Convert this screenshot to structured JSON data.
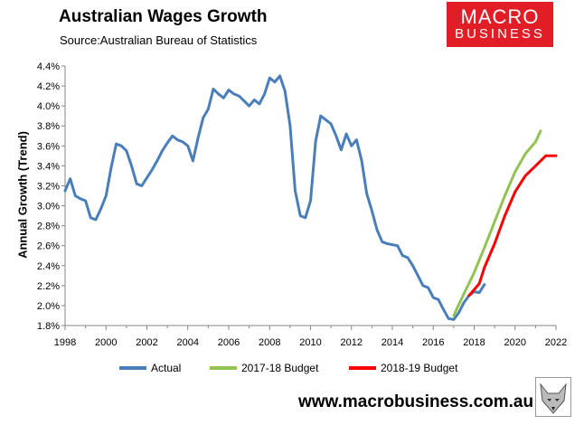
{
  "header": {
    "title": "Australian Wages Growth",
    "source": "Source:Australian Bureau of Statistics",
    "logo_line1": "MACRO",
    "logo_line2": "BUSINESS"
  },
  "footer": {
    "url": "www.macrobusiness.com.au"
  },
  "chart_data": {
    "type": "line",
    "ylabel": "Annual Growth (Trend)",
    "xlim": [
      1998,
      2022
    ],
    "ylim": [
      1.8,
      4.4
    ],
    "x_ticks": [
      "1998",
      "2000",
      "2002",
      "2004",
      "2006",
      "2008",
      "2010",
      "2012",
      "2014",
      "2016",
      "2018",
      "2020",
      "2022"
    ],
    "y_ticks": [
      "1.8%",
      "2.0%",
      "2.2%",
      "2.4%",
      "2.6%",
      "2.8%",
      "3.0%",
      "3.2%",
      "3.4%",
      "3.6%",
      "3.8%",
      "4.0%",
      "4.2%",
      "4.4%"
    ],
    "grid": false,
    "legend_position": "bottom",
    "series": [
      {
        "name": "Actual",
        "color": "#4a7ebb",
        "points": [
          [
            1998.0,
            3.15
          ],
          [
            1998.25,
            3.27
          ],
          [
            1998.5,
            3.1
          ],
          [
            1998.75,
            3.07
          ],
          [
            1999.0,
            3.05
          ],
          [
            1999.25,
            2.88
          ],
          [
            1999.5,
            2.86
          ],
          [
            1999.75,
            2.97
          ],
          [
            2000.0,
            3.1
          ],
          [
            2000.25,
            3.38
          ],
          [
            2000.5,
            3.62
          ],
          [
            2000.75,
            3.6
          ],
          [
            2001.0,
            3.55
          ],
          [
            2001.25,
            3.4
          ],
          [
            2001.5,
            3.22
          ],
          [
            2001.75,
            3.2
          ],
          [
            2002.0,
            3.28
          ],
          [
            2002.25,
            3.36
          ],
          [
            2002.5,
            3.45
          ],
          [
            2002.75,
            3.55
          ],
          [
            2003.0,
            3.63
          ],
          [
            2003.25,
            3.7
          ],
          [
            2003.5,
            3.66
          ],
          [
            2003.75,
            3.64
          ],
          [
            2004.0,
            3.6
          ],
          [
            2004.25,
            3.45
          ],
          [
            2004.5,
            3.68
          ],
          [
            2004.75,
            3.88
          ],
          [
            2005.0,
            3.97
          ],
          [
            2005.25,
            4.17
          ],
          [
            2005.5,
            4.12
          ],
          [
            2005.75,
            4.08
          ],
          [
            2006.0,
            4.16
          ],
          [
            2006.25,
            4.12
          ],
          [
            2006.5,
            4.1
          ],
          [
            2006.75,
            4.05
          ],
          [
            2007.0,
            4.0
          ],
          [
            2007.25,
            4.06
          ],
          [
            2007.5,
            4.02
          ],
          [
            2007.75,
            4.12
          ],
          [
            2008.0,
            4.28
          ],
          [
            2008.25,
            4.24
          ],
          [
            2008.5,
            4.3
          ],
          [
            2008.75,
            4.15
          ],
          [
            2009.0,
            3.8
          ],
          [
            2009.25,
            3.15
          ],
          [
            2009.5,
            2.9
          ],
          [
            2009.75,
            2.88
          ],
          [
            2010.0,
            3.05
          ],
          [
            2010.25,
            3.65
          ],
          [
            2010.5,
            3.9
          ],
          [
            2010.75,
            3.86
          ],
          [
            2011.0,
            3.82
          ],
          [
            2011.25,
            3.7
          ],
          [
            2011.5,
            3.56
          ],
          [
            2011.75,
            3.72
          ],
          [
            2012.0,
            3.6
          ],
          [
            2012.25,
            3.66
          ],
          [
            2012.5,
            3.45
          ],
          [
            2012.75,
            3.12
          ],
          [
            2013.0,
            2.95
          ],
          [
            2013.25,
            2.76
          ],
          [
            2013.5,
            2.64
          ],
          [
            2013.75,
            2.62
          ],
          [
            2014.0,
            2.61
          ],
          [
            2014.25,
            2.6
          ],
          [
            2014.5,
            2.5
          ],
          [
            2014.75,
            2.48
          ],
          [
            2015.0,
            2.4
          ],
          [
            2015.25,
            2.3
          ],
          [
            2015.5,
            2.2
          ],
          [
            2015.75,
            2.18
          ],
          [
            2016.0,
            2.08
          ],
          [
            2016.25,
            2.06
          ],
          [
            2016.5,
            1.96
          ],
          [
            2016.75,
            1.87
          ],
          [
            2017.0,
            1.86
          ],
          [
            2017.25,
            1.93
          ],
          [
            2017.5,
            2.03
          ],
          [
            2017.75,
            2.1
          ],
          [
            2018.0,
            2.14
          ],
          [
            2018.25,
            2.13
          ],
          [
            2018.5,
            2.21
          ]
        ]
      },
      {
        "name": "2017-18 Budget",
        "color": "#92c353",
        "points": [
          [
            2017.0,
            1.9
          ],
          [
            2017.5,
            2.12
          ],
          [
            2018.0,
            2.33
          ],
          [
            2018.5,
            2.58
          ],
          [
            2019.0,
            2.84
          ],
          [
            2019.5,
            3.1
          ],
          [
            2020.0,
            3.34
          ],
          [
            2020.5,
            3.52
          ],
          [
            2021.0,
            3.64
          ],
          [
            2021.25,
            3.75
          ]
        ]
      },
      {
        "name": "2018-19 Budget",
        "color": "#ff0000",
        "points": [
          [
            2017.75,
            2.1
          ],
          [
            2018.0,
            2.16
          ],
          [
            2018.25,
            2.22
          ],
          [
            2018.5,
            2.38
          ],
          [
            2019.0,
            2.62
          ],
          [
            2019.5,
            2.9
          ],
          [
            2020.0,
            3.14
          ],
          [
            2020.5,
            3.3
          ],
          [
            2021.0,
            3.4
          ],
          [
            2021.5,
            3.5
          ],
          [
            2022.0,
            3.5
          ]
        ]
      }
    ]
  }
}
